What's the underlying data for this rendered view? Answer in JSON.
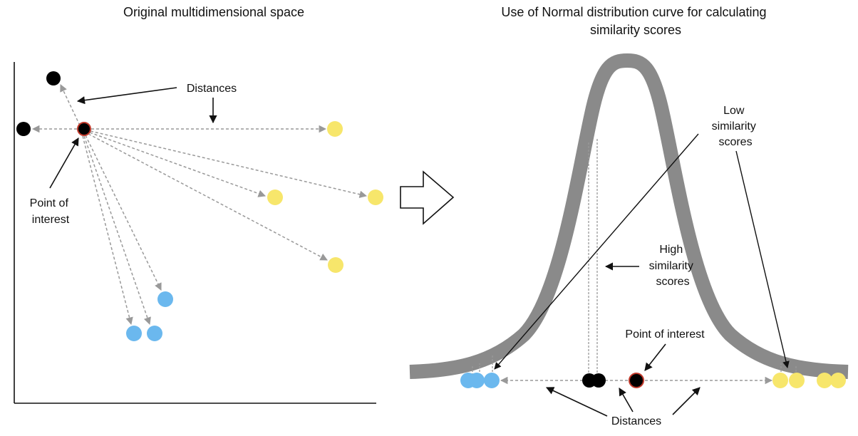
{
  "left_panel": {
    "title": "Original multidimensional space",
    "distances_label": "Distances",
    "point_label_lines": [
      "Point of",
      "interest"
    ]
  },
  "right_panel": {
    "title_lines": [
      "Use of Normal distribution curve for calculating",
      "similarity scores"
    ],
    "low_label_lines": [
      "Low",
      "similarity",
      "scores"
    ],
    "high_label_lines": [
      "High",
      "similarity",
      "scores"
    ],
    "point_label": "Point of interest",
    "distances_label": "Distances"
  },
  "colors": {
    "black_point": "#000000",
    "point_of_interest_outline": "#c0392b",
    "yellow_point": "#f7e66b",
    "blue_point": "#6bb8ee",
    "curve": "#8a8a8a",
    "dashed_line": "#999999",
    "arrow": "#111111"
  }
}
